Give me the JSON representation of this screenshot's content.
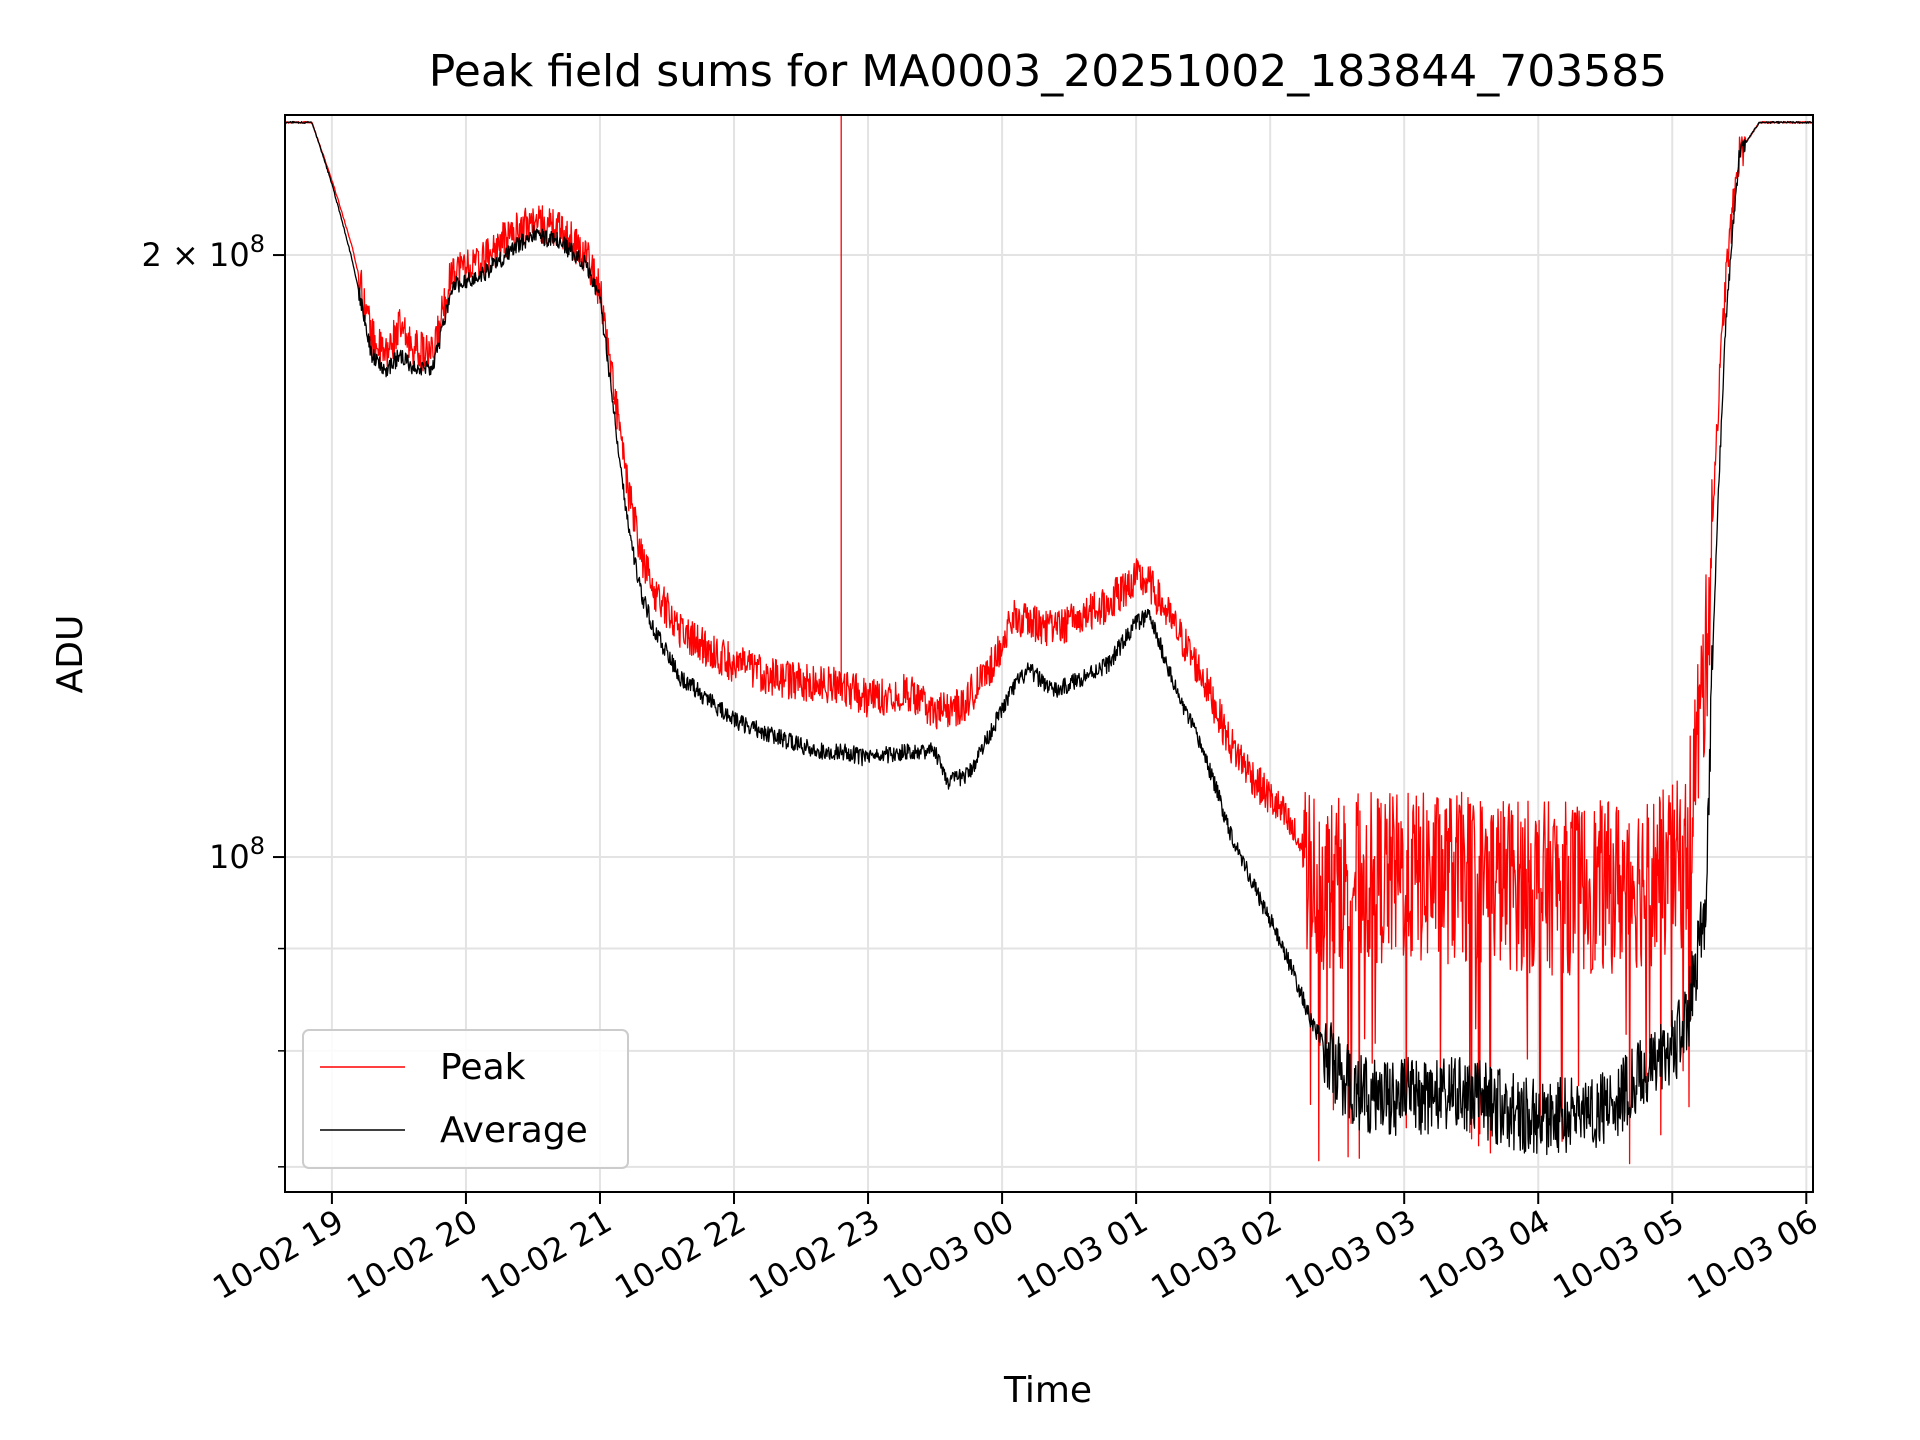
{
  "chart_data": {
    "type": "line",
    "title": "Peak field sums for MA0003_20251002_183844_703585",
    "xlabel": "Time",
    "ylabel": "ADU",
    "yscale": "log",
    "ylim": [
      68000000,
      235000000
    ],
    "xlim_hours": [
      18.65,
      30.05
    ],
    "x_ticks": [
      {
        "value": 19,
        "label": "10-02 19"
      },
      {
        "value": 20,
        "label": "10-02 20"
      },
      {
        "value": 21,
        "label": "10-02 21"
      },
      {
        "value": 22,
        "label": "10-02 22"
      },
      {
        "value": 23,
        "label": "10-02 23"
      },
      {
        "value": 24,
        "label": "10-03 00"
      },
      {
        "value": 25,
        "label": "10-03 01"
      },
      {
        "value": 26,
        "label": "10-03 02"
      },
      {
        "value": 27,
        "label": "10-03 03"
      },
      {
        "value": 28,
        "label": "10-03 04"
      },
      {
        "value": 29,
        "label": "10-03 05"
      },
      {
        "value": 30,
        "label": "10-03 06"
      }
    ],
    "y_major_ticks": [
      {
        "value": 100000000,
        "base": "10",
        "exp": "8"
      },
      {
        "value": 200000000,
        "base": "2 × 10",
        "exp": "8"
      }
    ],
    "y_minor_ticks": [
      70000000,
      80000000,
      90000000
    ],
    "grid": true,
    "legend_position": "lower-left",
    "series": [
      {
        "name": "Peak",
        "color": "#ff0000",
        "x": [
          18.65,
          18.85,
          19.0,
          19.15,
          19.3,
          19.4,
          19.5,
          19.6,
          19.75,
          19.9,
          20.1,
          20.3,
          20.5,
          20.7,
          20.9,
          21.0,
          21.1,
          21.2,
          21.3,
          21.4,
          21.6,
          21.8,
          22.0,
          22.3,
          22.6,
          22.8,
          23.0,
          23.3,
          23.5,
          23.7,
          23.9,
          24.1,
          24.2,
          24.4,
          24.6,
          24.8,
          25.0,
          25.1,
          25.3,
          25.5,
          25.7,
          25.9,
          26.1,
          26.3,
          26.4,
          26.6,
          27.0,
          27.5,
          28.0,
          28.5,
          28.9,
          29.1,
          29.25,
          29.4,
          29.5,
          29.65,
          30.05
        ],
        "y": [
          233000000,
          233000000,
          218000000,
          202000000,
          182000000,
          178000000,
          184000000,
          180000000,
          178000000,
          197000000,
          198000000,
          204000000,
          208000000,
          206000000,
          200000000,
          192000000,
          172000000,
          154000000,
          142000000,
          136000000,
          130000000,
          127000000,
          125000000,
          123000000,
          122000000,
          122000000,
          120000000,
          121000000,
          118000000,
          119000000,
          124000000,
          132000000,
          131000000,
          130000000,
          132000000,
          134000000,
          138000000,
          137000000,
          130000000,
          123000000,
          114000000,
          109000000,
          105000000,
          99000000,
          97000000,
          98000000,
          98000000,
          98000000,
          97000000,
          97000000,
          98000000,
          100000000,
          125000000,
          195000000,
          225000000,
          233000000,
          233000000
        ],
        "spikes": [
          {
            "x": 22.8,
            "y": 235000000
          }
        ]
      },
      {
        "name": "Average",
        "color": "#000000",
        "x": [
          18.65,
          18.85,
          19.0,
          19.15,
          19.3,
          19.4,
          19.5,
          19.6,
          19.75,
          19.9,
          20.1,
          20.3,
          20.5,
          20.7,
          20.9,
          21.0,
          21.1,
          21.2,
          21.3,
          21.4,
          21.6,
          21.8,
          22.0,
          22.3,
          22.6,
          22.8,
          23.0,
          23.3,
          23.5,
          23.6,
          23.75,
          23.9,
          24.1,
          24.2,
          24.4,
          24.6,
          24.8,
          25.0,
          25.1,
          25.3,
          25.5,
          25.7,
          25.9,
          26.1,
          26.3,
          26.5,
          26.7,
          27.0,
          27.5,
          28.0,
          28.5,
          28.9,
          29.1,
          29.25,
          29.4,
          29.5,
          29.65,
          30.05
        ],
        "y": [
          233000000,
          233000000,
          217000000,
          199000000,
          178000000,
          175000000,
          178000000,
          176000000,
          175000000,
          193000000,
          195000000,
          200000000,
          205000000,
          203000000,
          198000000,
          190000000,
          168000000,
          148000000,
          136000000,
          130000000,
          123000000,
          120000000,
          117000000,
          115000000,
          113000000,
          113000000,
          112000000,
          113000000,
          113000000,
          109000000,
          110000000,
          115000000,
          122000000,
          124000000,
          121000000,
          123000000,
          125000000,
          131000000,
          132000000,
          121000000,
          113000000,
          103000000,
          96000000,
          90000000,
          83000000,
          78000000,
          76000000,
          76000000,
          76000000,
          74000000,
          75000000,
          79000000,
          82000000,
          95000000,
          185000000,
          225000000,
          233000000,
          233000000
        ]
      }
    ]
  }
}
